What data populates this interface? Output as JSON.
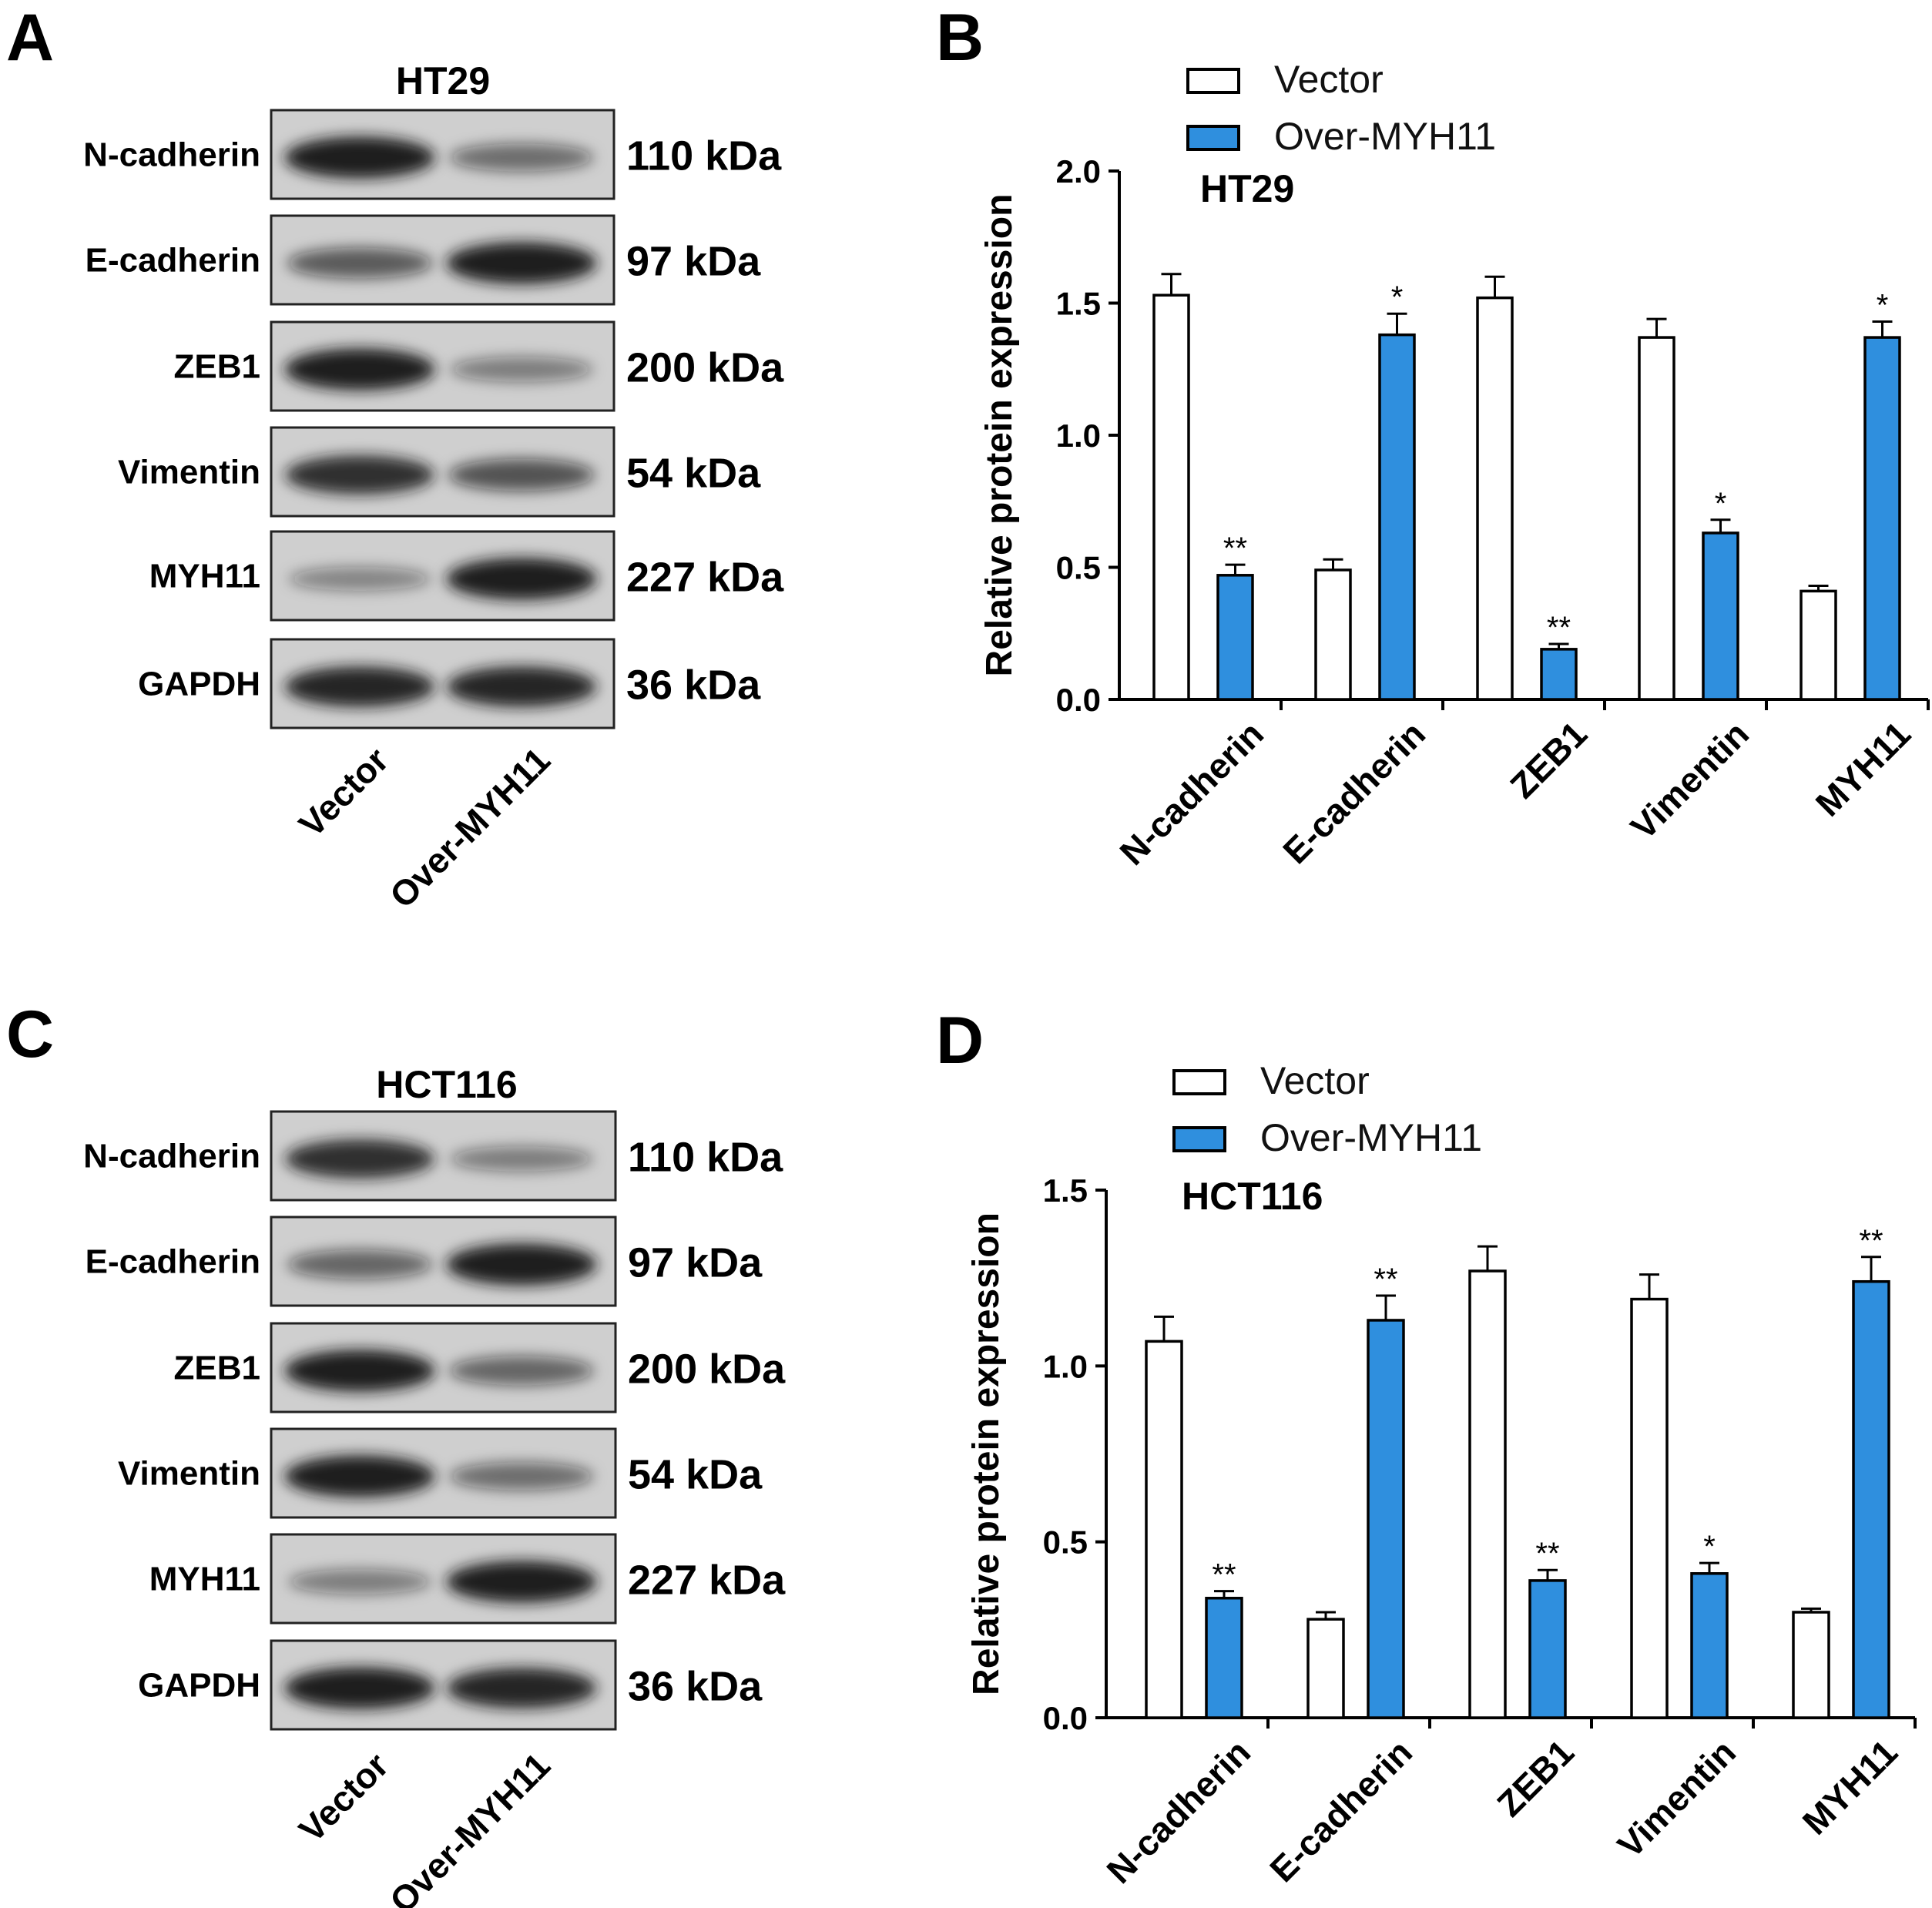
{
  "colors": {
    "vector_fill": "#ffffff",
    "over_fill": "#2f8fde",
    "stroke": "#000000",
    "blot_bg": "#cfcfcf",
    "band": "#141414"
  },
  "panels": {
    "A": {
      "letter": "A",
      "title": "HT29",
      "lanes": [
        "Vector",
        "Over-MYH11"
      ],
      "rows": [
        {
          "protein": "N-cadherin",
          "kda": "110 kDa",
          "band_intensity": [
            0.95,
            0.45
          ]
        },
        {
          "protein": "E-cadherin",
          "kda": "97 kDa",
          "band_intensity": [
            0.55,
            0.95
          ]
        },
        {
          "protein": "ZEB1",
          "kda": "200 kDa",
          "band_intensity": [
            0.95,
            0.35
          ]
        },
        {
          "protein": "Vimentin",
          "kda": "54 kDa",
          "band_intensity": [
            0.85,
            0.6
          ]
        },
        {
          "protein": "MYH11",
          "kda": "227 kDa",
          "band_intensity": [
            0.3,
            0.95
          ]
        },
        {
          "protein": "GAPDH",
          "kda": "36 kDa",
          "band_intensity": [
            0.9,
            0.9
          ]
        }
      ]
    },
    "C": {
      "letter": "C",
      "title": "HCT116",
      "lanes": [
        "Vector",
        "Over-MYH11"
      ],
      "rows": [
        {
          "protein": "N-cadherin",
          "kda": "110 kDa",
          "band_intensity": [
            0.85,
            0.35
          ]
        },
        {
          "protein": "E-cadherin",
          "kda": "97 kDa",
          "band_intensity": [
            0.5,
            0.95
          ]
        },
        {
          "protein": "ZEB1",
          "kda": "200 kDa",
          "band_intensity": [
            0.95,
            0.5
          ]
        },
        {
          "protein": "Vimentin",
          "kda": "54 kDa",
          "band_intensity": [
            0.95,
            0.45
          ]
        },
        {
          "protein": "MYH11",
          "kda": "227 kDa",
          "band_intensity": [
            0.35,
            0.95
          ]
        },
        {
          "protein": "GAPDH",
          "kda": "36 kDa",
          "band_intensity": [
            0.95,
            0.9
          ]
        }
      ]
    },
    "B": {
      "letter": "B"
    },
    "D": {
      "letter": "D"
    }
  },
  "chart_data": [
    {
      "panel": "B",
      "type": "bar",
      "title": "HT29",
      "ylabel": "Relative protein expression",
      "categories": [
        "N-cadherin",
        "E-cadherin",
        "ZEB1",
        "Vimentin",
        "MYH11"
      ],
      "ylim": [
        0.0,
        2.0
      ],
      "yticks": [
        "0.0",
        "0.5",
        "1.0",
        "1.5",
        "2.0"
      ],
      "legend": [
        "Vector",
        "Over-MYH11"
      ],
      "legend_position": "top",
      "series": [
        {
          "name": "Vector",
          "values": [
            1.53,
            0.49,
            1.52,
            1.37,
            0.41
          ],
          "errors": [
            0.08,
            0.04,
            0.08,
            0.07,
            0.02
          ],
          "sig": [
            "",
            "",
            "",
            "",
            ""
          ]
        },
        {
          "name": "Over-MYH11",
          "values": [
            0.47,
            1.38,
            0.19,
            0.63,
            1.37
          ],
          "errors": [
            0.04,
            0.08,
            0.02,
            0.05,
            0.06
          ],
          "sig": [
            "**",
            "*",
            "**",
            "*",
            "*"
          ]
        }
      ]
    },
    {
      "panel": "D",
      "type": "bar",
      "title": "HCT116",
      "ylabel": "Relative protein expression",
      "categories": [
        "N-cadherin",
        "E-cadherin",
        "ZEB1",
        "Vimentin",
        "MYH11"
      ],
      "ylim": [
        0.0,
        1.5
      ],
      "yticks": [
        "0.0",
        "0.5",
        "1.0",
        "1.5"
      ],
      "legend": [
        "Vector",
        "Over-MYH11"
      ],
      "legend_position": "top",
      "series": [
        {
          "name": "Vector",
          "values": [
            1.07,
            0.28,
            1.27,
            1.19,
            0.3
          ],
          "errors": [
            0.07,
            0.02,
            0.07,
            0.07,
            0.01
          ],
          "sig": [
            "",
            "",
            "",
            "",
            ""
          ]
        },
        {
          "name": "Over-MYH11",
          "values": [
            0.34,
            1.13,
            0.39,
            0.41,
            1.24
          ],
          "errors": [
            0.02,
            0.07,
            0.03,
            0.03,
            0.07
          ],
          "sig": [
            "**",
            "**",
            "**",
            "*",
            "**"
          ]
        }
      ]
    }
  ]
}
